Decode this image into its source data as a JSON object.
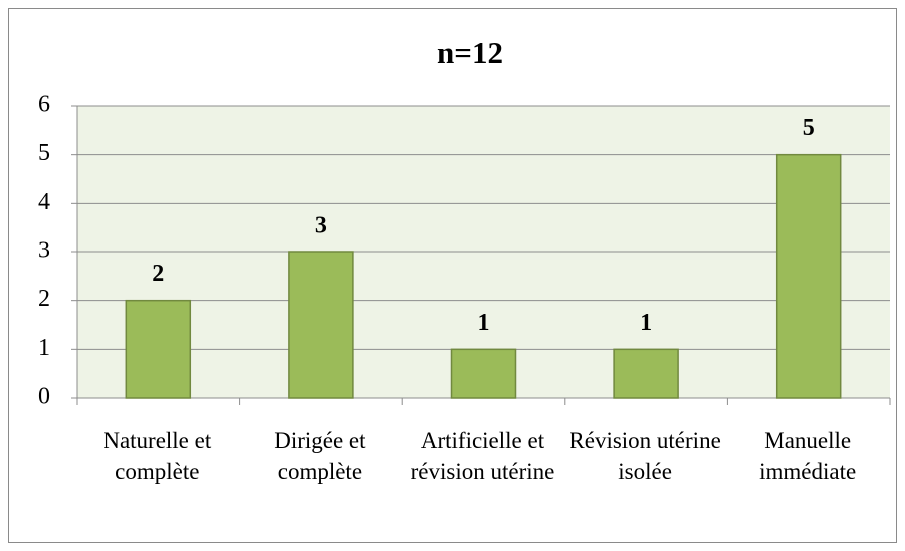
{
  "chart_data": {
    "type": "bar",
    "title": "n=12",
    "categories": [
      "Naturelle et complète",
      "Dirigée et complète",
      "Artificielle et révision utérine",
      "Révision utérine isolée",
      "Manuelle immédiate"
    ],
    "values": [
      2,
      3,
      1,
      1,
      5
    ],
    "color": "#9bbb59",
    "ylim": [
      0,
      6
    ],
    "yticks": [
      0,
      1,
      2,
      3,
      4,
      5,
      6
    ],
    "grid": true
  }
}
